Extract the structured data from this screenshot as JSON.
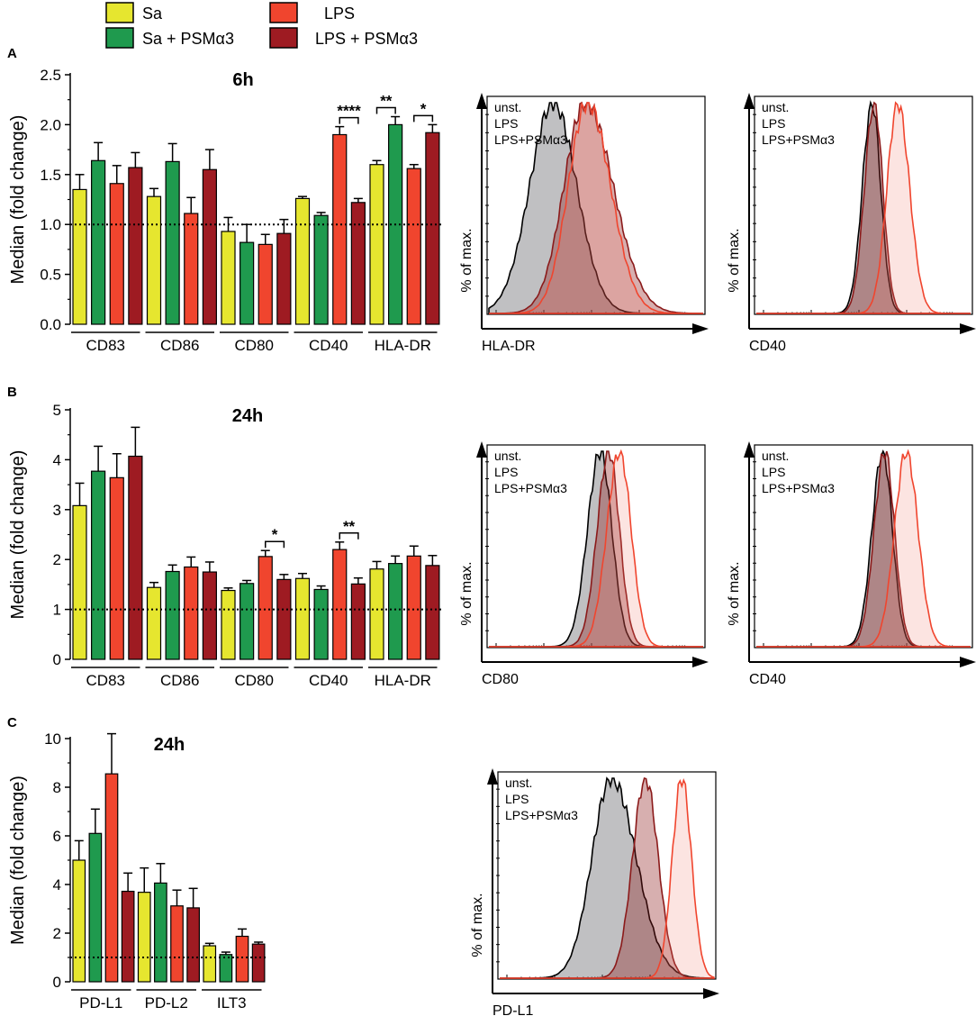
{
  "figure": {
    "legend": [
      {
        "label": "Sa",
        "color": "#e6e62f"
      },
      {
        "label": "Sa + PSMα3",
        "color": "#1f9a4e"
      },
      {
        "label": "LPS",
        "color": "#f0452e"
      },
      {
        "label": "LPS + PSMα3",
        "color": "#9e1b22"
      }
    ],
    "panels": [
      {
        "letter": "A"
      },
      {
        "letter": "B"
      },
      {
        "letter": "C"
      }
    ],
    "hist_legend": {
      "unst": "unst.",
      "lps": "LPS",
      "lps_psm": "LPS+PSMα3"
    },
    "hist_colors": {
      "unst": "#000000",
      "lps": "#f0452e",
      "lps_psm": "#8b1a1a"
    },
    "hist_ylabel": "% of max."
  },
  "chart_data": [
    {
      "type": "bar",
      "panel": "A",
      "title": "6h",
      "ylabel": "Median (fold change)",
      "ylim": [
        0,
        2.5
      ],
      "yticks": [
        "0.0",
        "0.5",
        "1.0",
        "1.5",
        "2.0",
        "2.5"
      ],
      "yticks_v": [
        0,
        0.5,
        1.0,
        1.5,
        2.0,
        2.5
      ],
      "baseline": 1.0,
      "categories": [
        "CD83",
        "CD86",
        "CD80",
        "CD40",
        "HLA-DR"
      ],
      "series": [
        {
          "name": "Sa",
          "values": [
            1.35,
            1.28,
            0.93,
            1.26,
            1.6
          ],
          "errors": [
            0.15,
            0.08,
            0.14,
            0.02,
            0.04
          ]
        },
        {
          "name": "Sa + PSMα3",
          "values": [
            1.64,
            1.63,
            0.82,
            1.09,
            2.0
          ],
          "errors": [
            0.18,
            0.18,
            0.18,
            0.03,
            0.08
          ]
        },
        {
          "name": "LPS",
          "values": [
            1.41,
            1.11,
            0.8,
            1.9,
            1.56
          ],
          "errors": [
            0.18,
            0.16,
            0.1,
            0.08,
            0.04
          ]
        },
        {
          "name": "LPS + PSMα3",
          "values": [
            1.57,
            1.55,
            0.91,
            1.22,
            1.92
          ],
          "errors": [
            0.15,
            0.2,
            0.14,
            0.04,
            0.08
          ]
        }
      ],
      "significance": [
        {
          "category": "CD40",
          "from": 2,
          "to": 3,
          "label": "****"
        },
        {
          "category": "HLA-DR",
          "from": 0,
          "to": 1,
          "label": "**"
        },
        {
          "category": "HLA-DR",
          "from": 2,
          "to": 3,
          "label": "*"
        }
      ]
    },
    {
      "type": "bar",
      "panel": "B",
      "title": "24h",
      "ylabel": "Median (fold change)",
      "ylim": [
        0,
        5
      ],
      "yticks": [
        "0",
        "1",
        "2",
        "3",
        "4",
        "5"
      ],
      "yticks_v": [
        0,
        1,
        2,
        3,
        4,
        5
      ],
      "baseline": 1.0,
      "categories": [
        "CD83",
        "CD86",
        "CD80",
        "CD40",
        "HLA-DR"
      ],
      "series": [
        {
          "name": "Sa",
          "values": [
            3.08,
            1.44,
            1.38,
            1.62,
            1.81
          ],
          "errors": [
            0.45,
            0.1,
            0.05,
            0.1,
            0.15
          ]
        },
        {
          "name": "Sa + PSMα3",
          "values": [
            3.77,
            1.76,
            1.52,
            1.4,
            1.92
          ],
          "errors": [
            0.5,
            0.13,
            0.06,
            0.07,
            0.15
          ]
        },
        {
          "name": "LPS",
          "values": [
            3.64,
            1.85,
            2.06,
            2.2,
            2.07
          ],
          "errors": [
            0.48,
            0.2,
            0.12,
            0.15,
            0.2
          ]
        },
        {
          "name": "LPS + PSMα3",
          "values": [
            4.07,
            1.75,
            1.6,
            1.51,
            1.88
          ],
          "errors": [
            0.58,
            0.2,
            0.1,
            0.12,
            0.2
          ]
        }
      ],
      "significance": [
        {
          "category": "CD80",
          "from": 2,
          "to": 3,
          "label": "*"
        },
        {
          "category": "CD40",
          "from": 2,
          "to": 3,
          "label": "**"
        }
      ]
    },
    {
      "type": "bar",
      "panel": "C",
      "title": "24h",
      "ylabel": "Median (fold change)",
      "ylim": [
        0,
        10
      ],
      "yticks": [
        "0",
        "2",
        "4",
        "6",
        "8",
        "10"
      ],
      "yticks_v": [
        0,
        2,
        4,
        6,
        8,
        10
      ],
      "baseline": 1.0,
      "categories": [
        "PD-L1",
        "PD-L2",
        "ILT3"
      ],
      "series": [
        {
          "name": "Sa",
          "values": [
            5.0,
            3.68,
            1.48
          ],
          "errors": [
            0.8,
            1.0,
            0.1
          ]
        },
        {
          "name": "Sa + PSMα3",
          "values": [
            6.1,
            4.06,
            1.12
          ],
          "errors": [
            1.0,
            0.8,
            0.1
          ]
        },
        {
          "name": "LPS",
          "values": [
            8.55,
            3.12,
            1.87
          ],
          "errors": [
            1.65,
            0.65,
            0.3
          ]
        },
        {
          "name": "LPS + PSMα3",
          "values": [
            3.72,
            3.04,
            1.55
          ],
          "errors": [
            0.75,
            0.8,
            0.08
          ]
        }
      ],
      "significance": []
    },
    {
      "type": "area",
      "panel": "A",
      "xlabel": "HLA-DR",
      "ylabel": "% of max.",
      "series": [
        {
          "name": "unst.",
          "peak": 0.3,
          "spread": 0.11,
          "skew": 1.0
        },
        {
          "name": "LPS",
          "peak": 0.46,
          "spread": 0.09,
          "skew": 1.2
        },
        {
          "name": "LPS+PSMα3",
          "peak": 0.45,
          "spread": 0.1,
          "skew": 1.3
        }
      ]
    },
    {
      "type": "area",
      "panel": "A",
      "xlabel": "CD40",
      "ylabel": "% of max.",
      "series": [
        {
          "name": "unst.",
          "peak": 0.54,
          "spread": 0.045,
          "skew": 0.9
        },
        {
          "name": "LPS",
          "peak": 0.66,
          "spread": 0.05,
          "skew": 1.1
        },
        {
          "name": "LPS+PSMα3",
          "peak": 0.55,
          "spread": 0.045,
          "skew": 0.9
        }
      ]
    },
    {
      "type": "area",
      "panel": "B",
      "xlabel": "CD80",
      "ylabel": "% of max.",
      "series": [
        {
          "name": "unst.",
          "peak": 0.52,
          "spread": 0.06,
          "skew": 0.9
        },
        {
          "name": "LPS",
          "peak": 0.61,
          "spread": 0.06,
          "skew": 0.9
        },
        {
          "name": "LPS+PSMα3",
          "peak": 0.56,
          "spread": 0.055,
          "skew": 0.9
        }
      ]
    },
    {
      "type": "area",
      "panel": "B",
      "xlabel": "CD40",
      "ylabel": "% of max.",
      "series": [
        {
          "name": "unst.",
          "peak": 0.59,
          "spread": 0.05,
          "skew": 0.9
        },
        {
          "name": "LPS",
          "peak": 0.7,
          "spread": 0.055,
          "skew": 1.0
        },
        {
          "name": "LPS+PSMα3",
          "peak": 0.6,
          "spread": 0.05,
          "skew": 0.9
        }
      ]
    },
    {
      "type": "area",
      "panel": "C",
      "xlabel": "PD-L1",
      "ylabel": "% of max.",
      "series": [
        {
          "name": "unst.",
          "peak": 0.52,
          "spread": 0.09,
          "skew": 1.3
        },
        {
          "name": "LPS",
          "peak": 0.85,
          "spread": 0.045,
          "skew": 1.0
        },
        {
          "name": "LPS+PSMα3",
          "peak": 0.68,
          "spread": 0.06,
          "skew": 1.0
        }
      ]
    }
  ]
}
